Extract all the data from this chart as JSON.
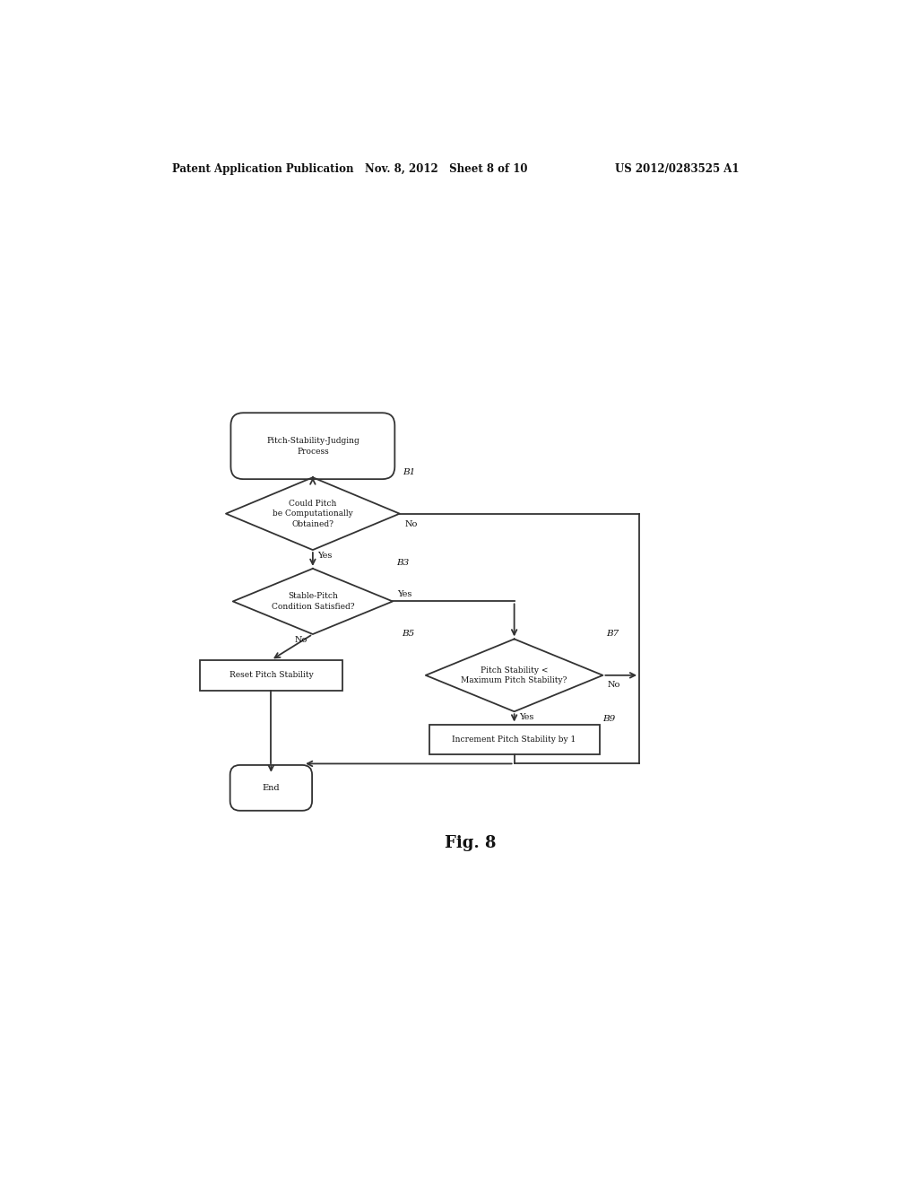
{
  "bg_color": "#ffffff",
  "header_left": "Patent Application Publication",
  "header_mid": "Nov. 8, 2012   Sheet 8 of 10",
  "header_right": "US 2012/0283525 A1",
  "fig_label": "Fig. 8",
  "title_text": "Pitch-Stability-Judging\nProcess",
  "b1_label": "B1",
  "b3_label": "B3",
  "b5_label": "B5",
  "b7_label": "B7",
  "b9_label": "B9",
  "d1_text": "Could Pitch\nbe Computationally\nObtained?",
  "d3_text": "Stable-Pitch\nCondition Satisfied?",
  "d7_text": "Pitch Stability <\nMaximum Pitch Stability?",
  "box5_text": "Reset Pitch Stability",
  "box9_text": "Increment Pitch Stability by 1",
  "end_text": "End",
  "yes_label": "Yes",
  "no_label": "No",
  "line_color": "#333333",
  "text_color": "#111111",
  "font_size": 7.0,
  "header_font_size": 8.5
}
